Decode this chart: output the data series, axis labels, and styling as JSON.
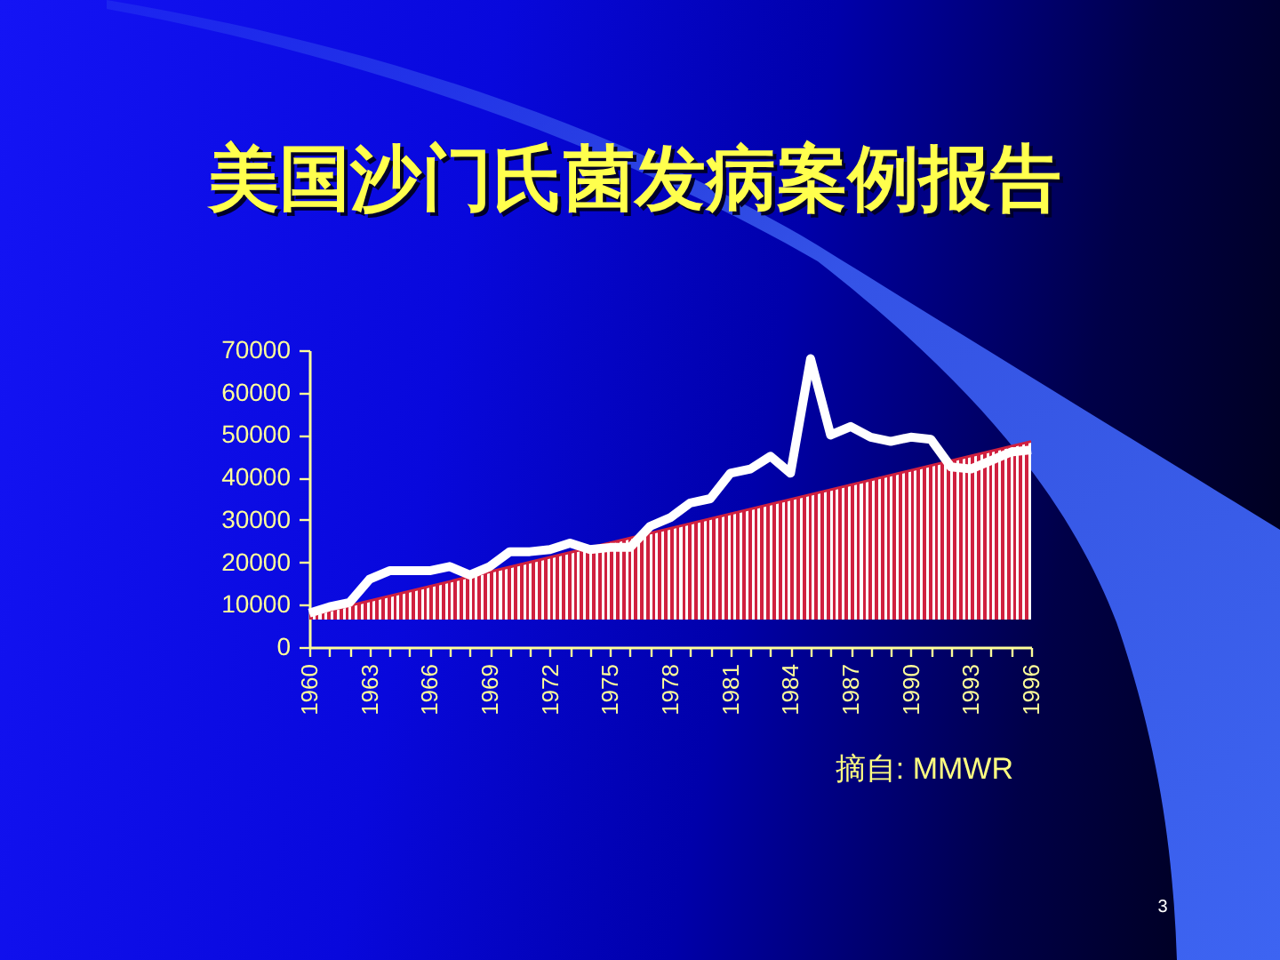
{
  "chart_data": {
    "type": "line",
    "title": "美国沙门氏菌发病案例报告",
    "x": [
      1960,
      1961,
      1962,
      1963,
      1964,
      1965,
      1966,
      1967,
      1968,
      1969,
      1970,
      1971,
      1972,
      1973,
      1974,
      1975,
      1976,
      1977,
      1978,
      1979,
      1980,
      1981,
      1982,
      1983,
      1984,
      1985,
      1986,
      1987,
      1988,
      1989,
      1990,
      1991,
      1992,
      1993,
      1994,
      1995,
      1996
    ],
    "xlim": [
      1960,
      1996
    ],
    "xticks": [
      1960,
      {
        "value": 1961,
        "label": null
      },
      {
        "value": 1962,
        "label": null
      },
      1963,
      {
        "value": 1964,
        "label": null
      },
      {
        "value": 1965,
        "label": null
      },
      1966,
      {
        "value": 1967,
        "label": null
      },
      {
        "value": 1968,
        "label": null
      },
      1969,
      {
        "value": 1970,
        "label": null
      },
      {
        "value": 1971,
        "label": null
      },
      1972,
      {
        "value": 1973,
        "label": null
      },
      {
        "value": 1974,
        "label": null
      },
      1975,
      {
        "value": 1976,
        "label": null
      },
      {
        "value": 1977,
        "label": null
      },
      1978,
      {
        "value": 1979,
        "label": null
      },
      {
        "value": 1980,
        "label": null
      },
      1981,
      {
        "value": 1982,
        "label": null
      },
      {
        "value": 1983,
        "label": null
      },
      1984,
      {
        "value": 1985,
        "label": null
      },
      {
        "value": 1986,
        "label": null
      },
      1987,
      {
        "value": 1988,
        "label": null
      },
      {
        "value": 1989,
        "label": null
      },
      1990,
      {
        "value": 1991,
        "label": null
      },
      {
        "value": 1992,
        "label": null
      },
      1993,
      {
        "value": 1994,
        "label": null
      },
      {
        "value": 1995,
        "label": null
      },
      1996
    ],
    "ylim": [
      0,
      70000
    ],
    "yticks": [
      0,
      10000,
      20000,
      30000,
      40000,
      50000,
      60000,
      70000
    ],
    "series": [
      {
        "type": "line",
        "color": "#ffffff",
        "values": [
          8000,
          9500,
          10500,
          16000,
          18000,
          18000,
          18000,
          19000,
          17000,
          19000,
          22500,
          22500,
          23000,
          24500,
          23000,
          23500,
          23500,
          28500,
          30500,
          34000,
          35000,
          41000,
          42000,
          45000,
          41000,
          68000,
          50000,
          52000,
          49500,
          48500,
          49500,
          49000,
          42500,
          42000,
          44000,
          46000,
          46500
        ]
      },
      {
        "type": "line",
        "color": "#d0203f",
        "x": [
          1960,
          1996
        ],
        "values": [
          7500,
          48500
        ],
        "lower": [
          6500,
          6500
        ],
        "upper": [
          7500,
          48500
        ]
      }
    ],
    "annotations": [
      "摘自: MMWR",
      "3"
    ]
  }
}
